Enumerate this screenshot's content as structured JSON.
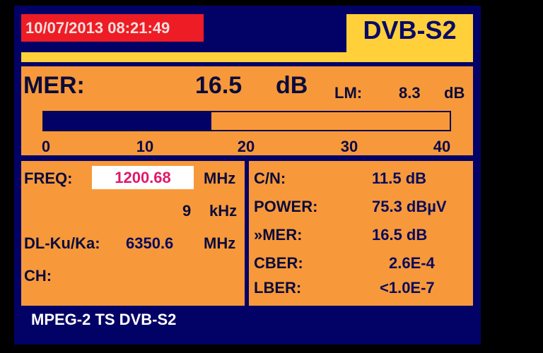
{
  "header": {
    "datetime": "10/07/2013 08:21:49",
    "mode": "DVB-S2"
  },
  "mer": {
    "label": "MER:",
    "value": "16.5",
    "unit": "dB",
    "lm_label": "LM:",
    "lm_value": "8.3",
    "lm_unit": "dB",
    "bar": {
      "value": 16.5,
      "min": 0,
      "max": 40,
      "ticks": [
        "0",
        "10",
        "20",
        "30",
        "40"
      ]
    }
  },
  "left": {
    "freq_label": "FREQ:",
    "freq_value": "1200.68",
    "freq_unit": "MHz",
    "offset_value": "9",
    "offset_unit": "kHz",
    "dl_label": "DL-Ku/Ka:",
    "dl_value": "6350.6",
    "dl_unit": "MHz",
    "ch_label": "CH:"
  },
  "right": {
    "rows": [
      {
        "label": "C/N:",
        "value": "11.5 dB"
      },
      {
        "label": "POWER:",
        "value": "75.3 dBµV"
      },
      {
        "label": "»MER:",
        "value": "16.5 dB"
      },
      {
        "label": "CBER:",
        "value": "2.6E-4"
      },
      {
        "label": "LBER:",
        "value": "<1.0E-7"
      }
    ]
  },
  "footer": {
    "stream": "MPEG-2 TS DVB-S2"
  },
  "colors": {
    "navy": "#020266",
    "orange": "#f7993a",
    "yellow": "#ffd03a",
    "red": "#ee1c24",
    "freq": "#e0186a"
  }
}
